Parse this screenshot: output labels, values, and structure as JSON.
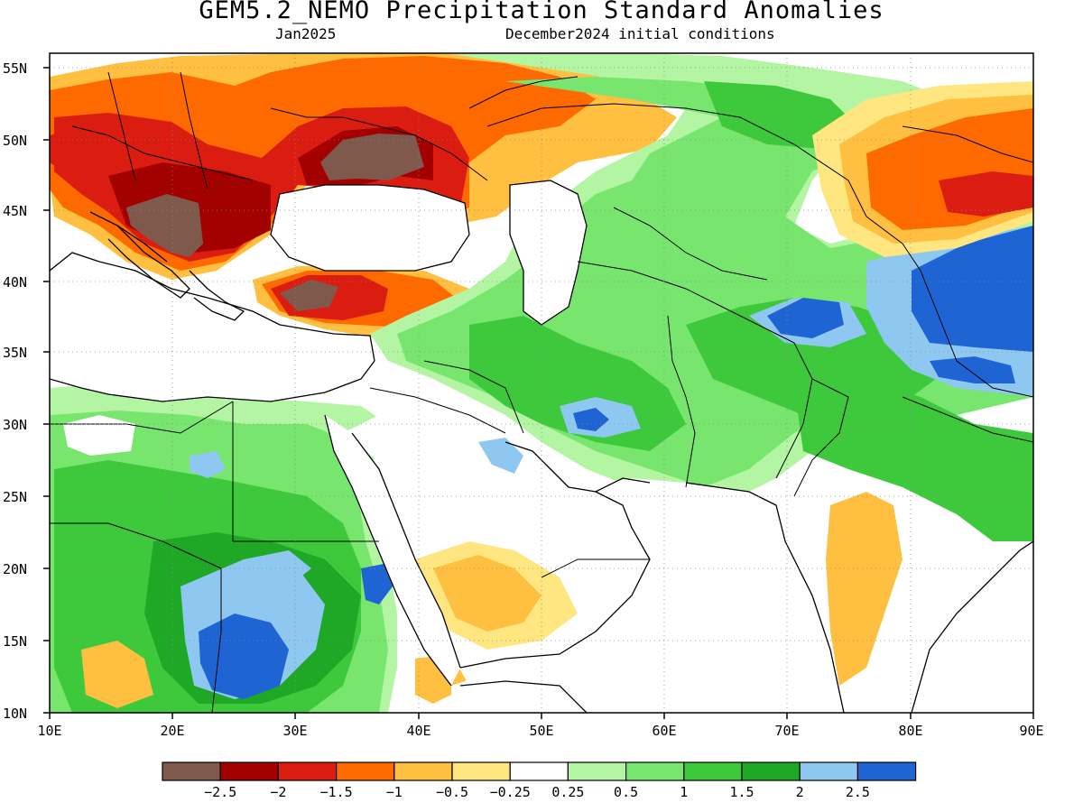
{
  "header": {
    "title": "GEM5.2_NEMO Precipitation Standard Anomalies",
    "valid_month": "Jan2025",
    "init": "December2024 initial conditions"
  },
  "axes": {
    "lat_labels": [
      "10N",
      "15N",
      "20N",
      "25N",
      "30N",
      "35N",
      "40N",
      "45N",
      "50N",
      "55N"
    ],
    "lon_labels": [
      "10E",
      "20E",
      "30E",
      "40E",
      "50E",
      "60E",
      "70E",
      "80E",
      "90E"
    ]
  },
  "colorbar": {
    "colors": [
      "#7f5a4c",
      "#a30000",
      "#db1c10",
      "#ff6a00",
      "#ffbf40",
      "#ffe680",
      "#ffffff",
      "#b4f5a3",
      "#78e66e",
      "#3ec83c",
      "#1fa826",
      "#8ec8f0",
      "#1e64d2"
    ],
    "labels": [
      "−2.5",
      "−2",
      "−1.5",
      "−1",
      "−0.5",
      "−0.25",
      "0.25",
      "0.5",
      "1",
      "1.5",
      "2",
      "2.5"
    ]
  }
}
